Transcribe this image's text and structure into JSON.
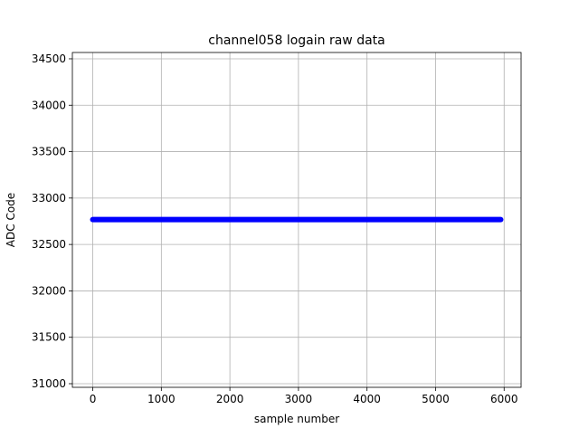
{
  "chart_data": {
    "type": "line",
    "title": "channel058 logain raw data",
    "x_label": "sample number",
    "y_label": "ADC Code",
    "x": [
      0,
      5950
    ],
    "series": [
      {
        "color": "#0000ff",
        "values": [
          32768,
          32768
        ]
      }
    ],
    "xlim": [
      -297.5,
      6247.5
    ],
    "xticks": [
      0,
      1000,
      2000,
      3000,
      4000,
      5000,
      6000
    ],
    "ylim": [
      30961,
      34568
    ],
    "yticks": [
      31000,
      31500,
      32000,
      32500,
      33000,
      33500,
      34000,
      34500
    ],
    "grid": true
  }
}
